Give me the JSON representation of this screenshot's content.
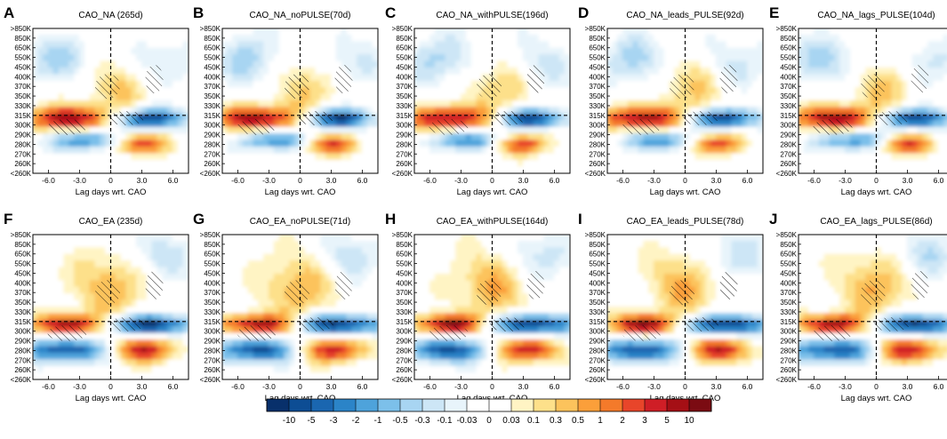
{
  "figure": {
    "x_axis_label": "Lag days wrt. CAO",
    "x_ticks": [
      "-6.0",
      "-3.0",
      "0",
      "3.0",
      "6.0"
    ],
    "x_tick_values": [
      -6,
      -3,
      0,
      3,
      6
    ],
    "x_range": [
      -7.5,
      7.5
    ],
    "y_ticks": [
      ">850K",
      "850K",
      "650K",
      "550K",
      "450K",
      "400K",
      "370K",
      "350K",
      "330K",
      "315K",
      "300K",
      "290K",
      "280K",
      "270K",
      "260K",
      "<260K"
    ],
    "reference_lines": {
      "lag_day": 0,
      "isentrope": "315K"
    },
    "colorbar": {
      "labels": [
        "-10",
        "-5",
        "-3",
        "-2",
        "-1",
        "-0.5",
        "-0.3",
        "-0.1",
        "-0.03",
        "0",
        "0.03",
        "0.1",
        "0.3",
        "0.5",
        "1",
        "2",
        "3",
        "5",
        "10"
      ],
      "colors": [
        "#08306b",
        "#0d4d94",
        "#1a66b0",
        "#2b84c8",
        "#4ea3db",
        "#7cc0ea",
        "#a8d5f2",
        "#cde6f6",
        "#e8f4fb",
        "#ffffff",
        "#ffffff",
        "#fff4c4",
        "#fde08a",
        "#fcc35c",
        "#fb9f3a",
        "#f47a2a",
        "#e8452a",
        "#cf1e26",
        "#a50f15",
        "#7b0b12"
      ]
    }
  },
  "chart_data": [
    {
      "type": "heatmap",
      "panel": "A",
      "title": "CAO_NA (265d)",
      "region": "NA",
      "sample_days": 265
    },
    {
      "type": "heatmap",
      "panel": "B",
      "title": "CAO_NA_noPULSE(70d)",
      "region": "NA",
      "sample_days": 70
    },
    {
      "type": "heatmap",
      "panel": "C",
      "title": "CAO_NA_withPULSE(196d)",
      "region": "NA",
      "sample_days": 196
    },
    {
      "type": "heatmap",
      "panel": "D",
      "title": "CAO_NA_leads_PULSE(92d)",
      "region": "NA",
      "sample_days": 92
    },
    {
      "type": "heatmap",
      "panel": "E",
      "title": "CAO_NA_lags_PULSE(104d)",
      "region": "NA",
      "sample_days": 104
    },
    {
      "type": "heatmap",
      "panel": "F",
      "title": "CAO_EA (235d)",
      "region": "EA",
      "sample_days": 235
    },
    {
      "type": "heatmap",
      "panel": "G",
      "title": "CAO_EA_noPULSE(71d)",
      "region": "EA",
      "sample_days": 71
    },
    {
      "type": "heatmap",
      "panel": "H",
      "title": "CAO_EA_withPULSE(164d)",
      "region": "EA",
      "sample_days": 164
    },
    {
      "type": "heatmap",
      "panel": "I",
      "title": "CAO_EA_leads_PULSE(78d)",
      "region": "EA",
      "sample_days": 78
    },
    {
      "type": "heatmap",
      "panel": "J",
      "title": "CAO_EA_lags_PULSE(86d)",
      "region": "EA",
      "sample_days": 86
    }
  ]
}
